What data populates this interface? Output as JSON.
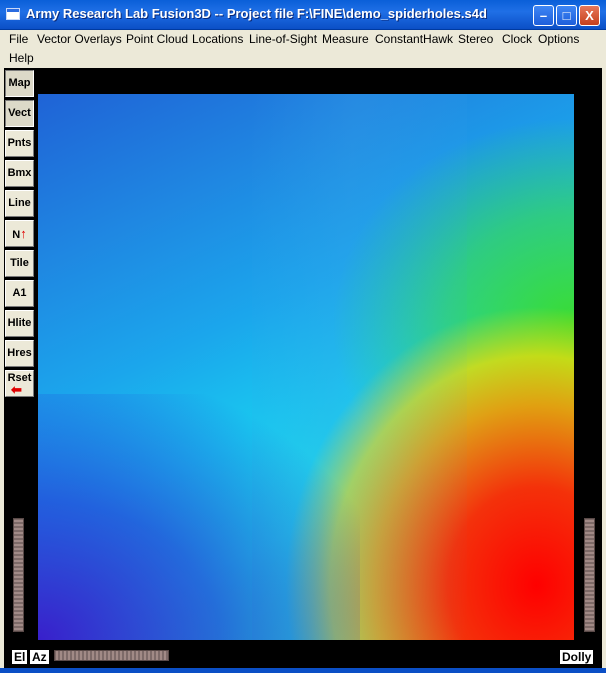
{
  "window": {
    "title": "Army Research Lab Fusion3D -- Project file F:\\FINE\\demo_spiderholes.s4d",
    "minimize_glyph": "–",
    "maximize_glyph": "□",
    "close_glyph": "X"
  },
  "menu": {
    "items": [
      "File",
      "Vector Overlays",
      "Point Cloud",
      "Locations",
      "Line-of-Sight",
      "Measure",
      "ConstantHawk",
      "Stereo",
      "Clock",
      "Options",
      "Help"
    ]
  },
  "sidebar": {
    "buttons": [
      {
        "label": "Map",
        "pressed": true
      },
      {
        "label": "Vect",
        "pressed": true
      },
      {
        "label": "Pnts",
        "pressed": false
      },
      {
        "label": "Bmx",
        "pressed": false
      },
      {
        "label": "Line",
        "pressed": false
      },
      {
        "label": "N",
        "icon": "north-arrow-icon",
        "pressed": false
      },
      {
        "label": "Tile",
        "pressed": false
      },
      {
        "label": "A1",
        "pressed": false
      },
      {
        "label": "Hlite",
        "pressed": false
      },
      {
        "label": "Hres",
        "pressed": false
      },
      {
        "label": "Rset",
        "icon": "reset-arrow-icon",
        "pressed": false
      }
    ]
  },
  "viewport": {
    "el_label": "El",
    "az_label": "Az",
    "dolly_label": "Dolly"
  },
  "colors": {
    "titlebar": "#0b5bd6",
    "viewport_bg": "#000000",
    "menu_bg": "#ece9d8"
  }
}
